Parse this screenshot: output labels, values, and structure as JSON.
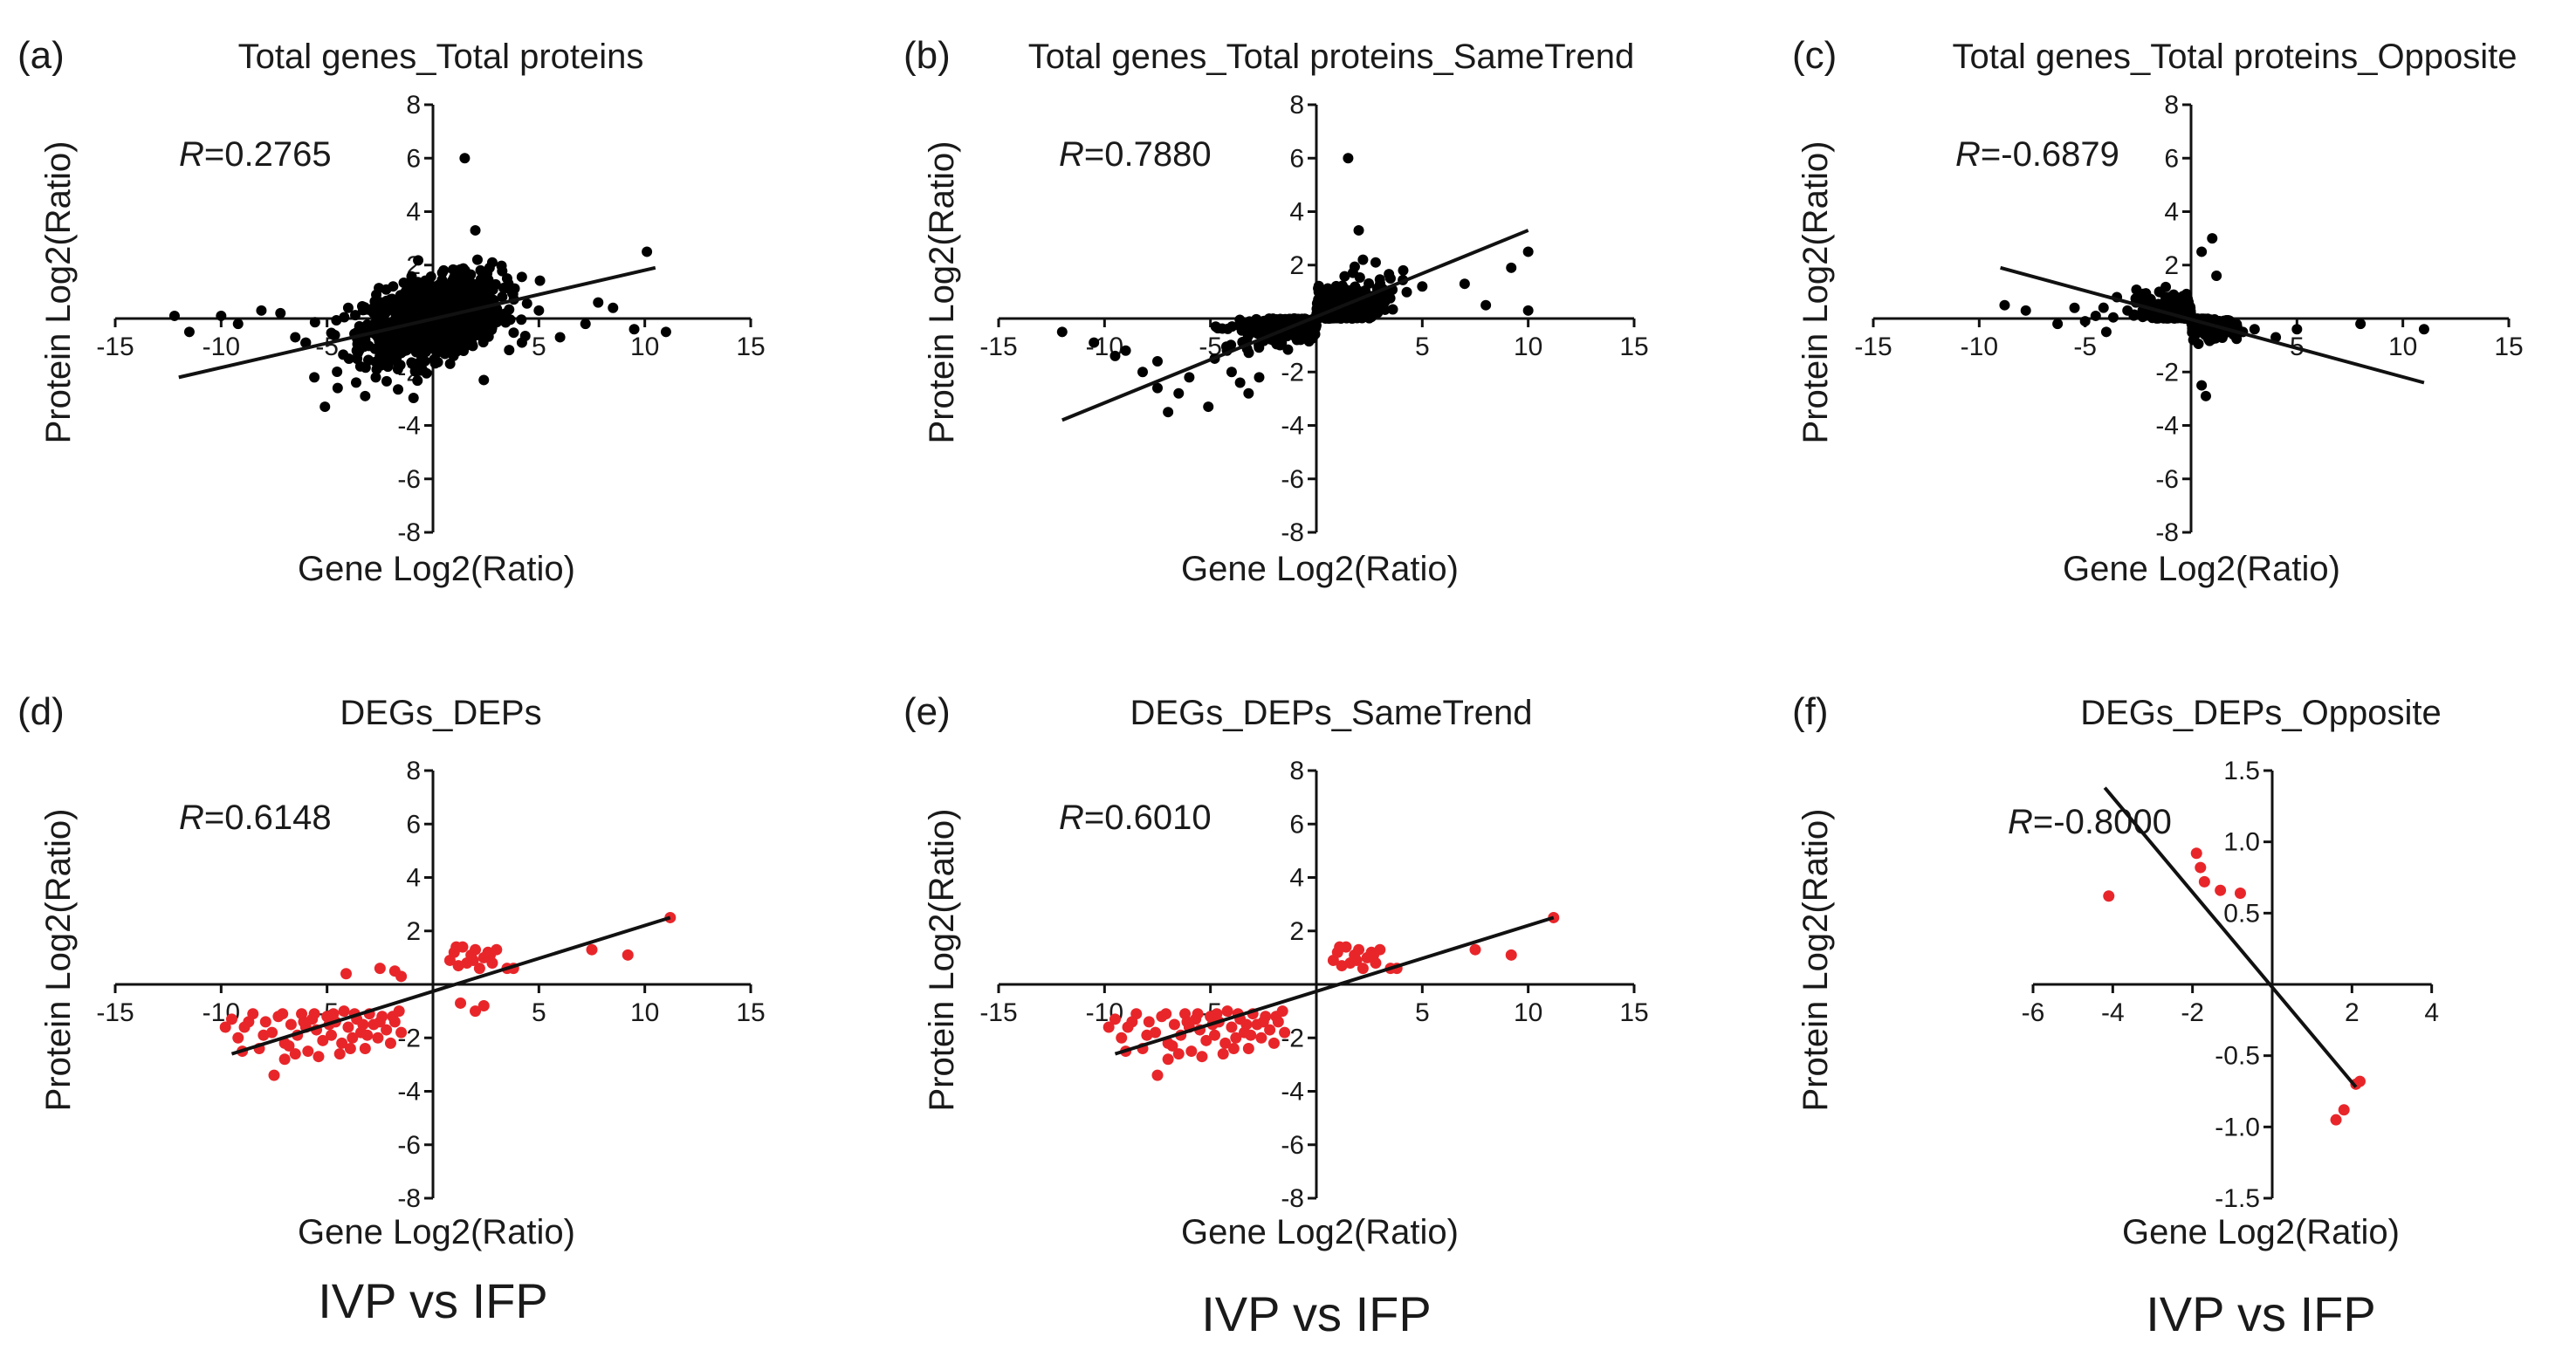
{
  "figure": {
    "group_labels": [
      "IVP vs IFP",
      "IVP vs IFP",
      "IVP vs IFP"
    ]
  },
  "chart_data": [
    {
      "panel": "(a)",
      "type": "scatter",
      "title": "Total genes_Total proteins",
      "xlabel": "Gene Log2(Ratio)",
      "ylabel": "Protein Log2(Ratio)",
      "r_label": "R",
      "r_value": "=0.2765",
      "xlim": [
        -15,
        15
      ],
      "ylim": [
        -8,
        8
      ],
      "xticks": [
        -15,
        -10,
        -5,
        5,
        10,
        15
      ],
      "yticks": [
        -8,
        -6,
        -4,
        -2,
        2,
        4,
        6,
        8
      ],
      "marker_color": "#000000",
      "cluster": {
        "kind": "all",
        "n": 1100,
        "x_mean": 0,
        "x_sd": 1.6,
        "y_sd": 0.7,
        "slope": 0.17
      },
      "points": [
        [
          -12.2,
          0.1
        ],
        [
          -11.5,
          -0.5
        ],
        [
          -10,
          0.1
        ],
        [
          -9.2,
          -0.2
        ],
        [
          -8.1,
          0.3
        ],
        [
          -7.2,
          0.2
        ],
        [
          -6.5,
          -0.7
        ],
        [
          -6,
          -0.9
        ],
        [
          -5.6,
          -2.2
        ],
        [
          -5.1,
          -3.3
        ],
        [
          -4.5,
          -2.6
        ],
        [
          -4,
          0.4
        ],
        [
          -3.6,
          -1.2
        ],
        [
          -3.2,
          -2.9
        ],
        [
          -2.7,
          -2.2
        ],
        [
          1.5,
          6
        ],
        [
          2,
          3.3
        ],
        [
          2.1,
          2.2
        ],
        [
          2.4,
          -2.3
        ],
        [
          2.8,
          2.1
        ],
        [
          3.5,
          1.5
        ],
        [
          4.2,
          -0.9
        ],
        [
          5,
          0.3
        ],
        [
          6,
          -0.7
        ],
        [
          7.2,
          -0.2
        ],
        [
          7.8,
          0.6
        ],
        [
          8.5,
          0.4
        ],
        [
          9.5,
          -0.4
        ],
        [
          10.1,
          2.5
        ],
        [
          11,
          -0.5
        ]
      ],
      "fit": {
        "x": [
          -12,
          10.5
        ],
        "y": [
          -2.2,
          1.9
        ]
      }
    },
    {
      "panel": "(b)",
      "type": "scatter",
      "title": "Total genes_Total proteins_SameTrend",
      "xlabel": "Gene Log2(Ratio)",
      "ylabel": "Protein Log2(Ratio)",
      "r_label": "R",
      "r_value": "=0.7880",
      "xlim": [
        -15,
        15
      ],
      "ylim": [
        -8,
        8
      ],
      "xticks": [
        -15,
        -10,
        -5,
        5,
        10,
        15
      ],
      "yticks": [
        -8,
        -6,
        -4,
        -2,
        2,
        4,
        6,
        8
      ],
      "marker_color": "#000000",
      "cluster": {
        "kind": "same",
        "n": 700,
        "x_mean": 0,
        "x_sd": 1.7,
        "y_sd": 0.5,
        "slope": 0.2
      },
      "points": [
        [
          -12,
          -0.5
        ],
        [
          -10.5,
          -0.9
        ],
        [
          -9.5,
          -1.4
        ],
        [
          -9,
          -1.2
        ],
        [
          -8.2,
          -2
        ],
        [
          -7.5,
          -1.6
        ],
        [
          -7.5,
          -2.6
        ],
        [
          -7,
          -3.5
        ],
        [
          -6.5,
          -2.8
        ],
        [
          -6,
          -2.2
        ],
        [
          -5.1,
          -3.3
        ],
        [
          -4.8,
          -1.5
        ],
        [
          -4,
          -2
        ],
        [
          -3.6,
          -2.4
        ],
        [
          -3.2,
          -2.8
        ],
        [
          -2.7,
          -2.2
        ],
        [
          1.5,
          6
        ],
        [
          2,
          3.3
        ],
        [
          2.2,
          2.2
        ],
        [
          2.8,
          2.1
        ],
        [
          3.5,
          1.5
        ],
        [
          4.1,
          1.8
        ],
        [
          5,
          1.2
        ],
        [
          7,
          1.3
        ],
        [
          8,
          0.5
        ],
        [
          9.2,
          1.9
        ],
        [
          10,
          2.5
        ],
        [
          10,
          0.3
        ]
      ],
      "fit": {
        "x": [
          -12,
          10
        ],
        "y": [
          -3.8,
          3.3
        ]
      }
    },
    {
      "panel": "(c)",
      "type": "scatter",
      "title": "Total genes_Total proteins_Opposite",
      "xlabel": "Gene Log2(Ratio)",
      "ylabel": "Protein Log2(Ratio)",
      "r_label": "R",
      "r_value": "=-0.6879",
      "xlim": [
        -15,
        15
      ],
      "ylim": [
        -8,
        8
      ],
      "xticks": [
        -15,
        -10,
        -5,
        5,
        10,
        15
      ],
      "yticks": [
        -8,
        -6,
        -4,
        -2,
        2,
        4,
        6,
        8
      ],
      "marker_color": "#000000",
      "cluster": {
        "kind": "opposite",
        "n": 450,
        "x_mean": 0,
        "x_sd": 1.2,
        "y_sd": 0.4,
        "slope": -0.18
      },
      "points": [
        [
          -8.8,
          0.5
        ],
        [
          -7.8,
          0.3
        ],
        [
          -6.3,
          -0.2
        ],
        [
          -5.5,
          0.4
        ],
        [
          -5,
          -0.1
        ],
        [
          -4.5,
          0.1
        ],
        [
          -4,
          -0.5
        ],
        [
          -3.5,
          0.8
        ],
        [
          -3,
          0.3
        ],
        [
          -2.6,
          0.6
        ],
        [
          -1.5,
          1
        ],
        [
          0.5,
          2.5
        ],
        [
          0.5,
          -2.5
        ],
        [
          0.7,
          -2.9
        ],
        [
          1,
          3
        ],
        [
          1.2,
          1.6
        ],
        [
          2,
          -0.6
        ],
        [
          3,
          -0.4
        ],
        [
          4,
          -0.7
        ],
        [
          5,
          -0.4
        ],
        [
          8,
          -0.2
        ],
        [
          11,
          -0.4
        ]
      ],
      "fit": {
        "x": [
          -9,
          11
        ],
        "y": [
          1.9,
          -2.4
        ]
      }
    },
    {
      "panel": "(d)",
      "type": "scatter",
      "title": "DEGs_DEPs",
      "xlabel": "Gene Log2(Ratio)",
      "ylabel": "Protein Log2(Ratio)",
      "r_label": "R",
      "r_value": "=0.6148",
      "xlim": [
        -15,
        15
      ],
      "ylim": [
        -8,
        8
      ],
      "xticks": [
        -15,
        -10,
        -5,
        5,
        10,
        15
      ],
      "yticks": [
        -8,
        -6,
        -4,
        -2,
        2,
        4,
        6,
        8
      ],
      "marker_color": "#e8262a",
      "points": [
        [
          -9.5,
          -1.3
        ],
        [
          -9.2,
          -2
        ],
        [
          -8.9,
          -1.6
        ],
        [
          -8.5,
          -1.1
        ],
        [
          -8.2,
          -2.4
        ],
        [
          -7.9,
          -1.4
        ],
        [
          -7.6,
          -1.8
        ],
        [
          -7.3,
          -1.2
        ],
        [
          -7,
          -2.2
        ],
        [
          -7,
          -2.8
        ],
        [
          -6.7,
          -1.5
        ],
        [
          -6.4,
          -1.9
        ],
        [
          -6.2,
          -1.1
        ],
        [
          -5.9,
          -2.5
        ],
        [
          -5.7,
          -1.3
        ],
        [
          -5.5,
          -1.7
        ],
        [
          -5.2,
          -2.1
        ],
        [
          -5,
          -1.2
        ],
        [
          -4.8,
          -1.9
        ],
        [
          -4.6,
          -1.4
        ],
        [
          -4.4,
          -2.6
        ],
        [
          -4.2,
          -1
        ],
        [
          -4,
          -1.6
        ],
        [
          -3.8,
          -2
        ],
        [
          -3.6,
          -1.3
        ],
        [
          -3.4,
          -1.8
        ],
        [
          -3.2,
          -2.4
        ],
        [
          -3,
          -1.1
        ],
        [
          -2.8,
          -1.5
        ],
        [
          -2.6,
          -2
        ],
        [
          -2.4,
          -1.2
        ],
        [
          -2.2,
          -1.7
        ],
        [
          -2,
          -2.2
        ],
        [
          -1.8,
          -1.4
        ],
        [
          -1.6,
          -1
        ],
        [
          -1.5,
          -1.8
        ],
        [
          -9.8,
          -1.6
        ],
        [
          -9,
          -2.5
        ],
        [
          -8,
          -1.9
        ],
        [
          -7.5,
          -3.4
        ],
        [
          -6.8,
          -2.3
        ],
        [
          -6,
          -1.6
        ],
        [
          -5.4,
          -2.7
        ],
        [
          -4.9,
          -1.5
        ],
        [
          -4.3,
          -2.2
        ],
        [
          -3.7,
          -1.1
        ],
        [
          -3.1,
          -1.9
        ],
        [
          -2.5,
          -1.4
        ],
        [
          -1.9,
          -1.2
        ],
        [
          -7.1,
          -1.1
        ],
        [
          -6.5,
          -2.6
        ],
        [
          -4.7,
          -1.1
        ],
        [
          -3.9,
          -2.4
        ],
        [
          -6.1,
          -1.4
        ],
        [
          -5.6,
          -1.1
        ],
        [
          -8.7,
          -1.4
        ],
        [
          -3.3,
          -1.5
        ],
        [
          -4.1,
          0.4
        ],
        [
          -2.5,
          0.6
        ],
        [
          -1.8,
          0.5
        ],
        [
          -1.5,
          0.3
        ],
        [
          0.8,
          0.9
        ],
        [
          1,
          1.2
        ],
        [
          1.2,
          0.7
        ],
        [
          1.4,
          1.4
        ],
        [
          1.6,
          0.8
        ],
        [
          1.8,
          1.1
        ],
        [
          2,
          1.3
        ],
        [
          2.2,
          0.6
        ],
        [
          2.4,
          1
        ],
        [
          2.6,
          1.2
        ],
        [
          2.8,
          0.8
        ],
        [
          3,
          1.3
        ],
        [
          3.5,
          0.6
        ],
        [
          1.1,
          1.4
        ],
        [
          1.9,
          0.9
        ],
        [
          2.7,
          1.1
        ],
        [
          1.3,
          -0.7
        ],
        [
          2,
          -1
        ],
        [
          2.4,
          -0.8
        ],
        [
          3.8,
          0.6
        ],
        [
          7.5,
          1.3
        ],
        [
          9.2,
          1.1
        ],
        [
          11.2,
          2.5
        ]
      ],
      "fit": {
        "x": [
          -9.5,
          11.2
        ],
        "y": [
          -2.6,
          2.5
        ]
      }
    },
    {
      "panel": "(e)",
      "type": "scatter",
      "title": "DEGs_DEPs_SameTrend",
      "xlabel": "Gene Log2(Ratio)",
      "ylabel": "Protein Log2(Ratio)",
      "r_label": "R",
      "r_value": "=0.6010",
      "xlim": [
        -15,
        15
      ],
      "ylim": [
        -8,
        8
      ],
      "xticks": [
        -15,
        -10,
        -5,
        5,
        10,
        15
      ],
      "yticks": [
        -8,
        -6,
        -4,
        -2,
        2,
        4,
        6,
        8
      ],
      "marker_color": "#e8262a",
      "points": [
        [
          -9.5,
          -1.3
        ],
        [
          -9.2,
          -2
        ],
        [
          -8.9,
          -1.6
        ],
        [
          -8.5,
          -1.1
        ],
        [
          -8.2,
          -2.4
        ],
        [
          -7.9,
          -1.4
        ],
        [
          -7.6,
          -1.8
        ],
        [
          -7.3,
          -1.2
        ],
        [
          -7,
          -2.2
        ],
        [
          -7,
          -2.8
        ],
        [
          -6.7,
          -1.5
        ],
        [
          -6.4,
          -1.9
        ],
        [
          -6.2,
          -1.1
        ],
        [
          -5.9,
          -2.5
        ],
        [
          -5.7,
          -1.3
        ],
        [
          -5.5,
          -1.7
        ],
        [
          -5.2,
          -2.1
        ],
        [
          -5,
          -1.2
        ],
        [
          -4.8,
          -1.9
        ],
        [
          -4.6,
          -1.4
        ],
        [
          -4.4,
          -2.6
        ],
        [
          -4.2,
          -1
        ],
        [
          -4,
          -1.6
        ],
        [
          -3.8,
          -2
        ],
        [
          -3.6,
          -1.3
        ],
        [
          -3.4,
          -1.8
        ],
        [
          -3.2,
          -2.4
        ],
        [
          -3,
          -1.1
        ],
        [
          -2.8,
          -1.5
        ],
        [
          -2.6,
          -2
        ],
        [
          -2.4,
          -1.2
        ],
        [
          -2.2,
          -1.7
        ],
        [
          -2,
          -2.2
        ],
        [
          -1.8,
          -1.4
        ],
        [
          -1.6,
          -1
        ],
        [
          -1.5,
          -1.8
        ],
        [
          -9.8,
          -1.6
        ],
        [
          -9,
          -2.5
        ],
        [
          -8,
          -1.9
        ],
        [
          -7.5,
          -3.4
        ],
        [
          -6.8,
          -2.3
        ],
        [
          -6,
          -1.6
        ],
        [
          -5.4,
          -2.7
        ],
        [
          -4.9,
          -1.5
        ],
        [
          -4.3,
          -2.2
        ],
        [
          -3.7,
          -1.1
        ],
        [
          -3.1,
          -1.9
        ],
        [
          -2.5,
          -1.4
        ],
        [
          -1.9,
          -1.2
        ],
        [
          -7.1,
          -1.1
        ],
        [
          -6.5,
          -2.6
        ],
        [
          -4.7,
          -1.1
        ],
        [
          -3.9,
          -2.4
        ],
        [
          -6.1,
          -1.4
        ],
        [
          -5.6,
          -1.1
        ],
        [
          -8.7,
          -1.4
        ],
        [
          -3.3,
          -1.5
        ],
        [
          0.8,
          0.9
        ],
        [
          1,
          1.2
        ],
        [
          1.2,
          0.7
        ],
        [
          1.4,
          1.4
        ],
        [
          1.6,
          0.8
        ],
        [
          1.8,
          1.1
        ],
        [
          2,
          1.3
        ],
        [
          2.2,
          0.6
        ],
        [
          2.4,
          1
        ],
        [
          2.6,
          1.2
        ],
        [
          2.8,
          0.8
        ],
        [
          3,
          1.3
        ],
        [
          3.5,
          0.6
        ],
        [
          1.1,
          1.4
        ],
        [
          1.9,
          0.9
        ],
        [
          2.7,
          1.1
        ],
        [
          3.8,
          0.6
        ],
        [
          7.5,
          1.3
        ],
        [
          9.2,
          1.1
        ],
        [
          11.2,
          2.5
        ]
      ],
      "fit": {
        "x": [
          -9.5,
          11.2
        ],
        "y": [
          -2.6,
          2.5
        ]
      }
    },
    {
      "panel": "(f)",
      "type": "scatter",
      "title": "DEGs_DEPs_Opposite",
      "xlabel": "Gene Log2(Ratio)",
      "ylabel": "Protein Log2(Ratio)",
      "r_label": "R",
      "r_value": "=-0.8000",
      "xlim": [
        -6,
        4
      ],
      "ylim": [
        -1.5,
        1.5
      ],
      "xticks": [
        -6,
        -4,
        -2,
        2,
        4
      ],
      "yticks": [
        -1.5,
        -1.0,
        -0.5,
        0.5,
        1.0,
        1.5
      ],
      "ytick_labels": [
        "-1.5",
        "-1.0",
        "-0.5",
        "0.5",
        "1.0",
        "1.5"
      ],
      "marker_color": "#e8262a",
      "points": [
        [
          -4.1,
          0.62
        ],
        [
          -1.9,
          0.92
        ],
        [
          -1.8,
          0.82
        ],
        [
          -1.7,
          0.72
        ],
        [
          -1.3,
          0.66
        ],
        [
          -0.8,
          0.64
        ],
        [
          1.6,
          -0.95
        ],
        [
          1.8,
          -0.88
        ],
        [
          2.1,
          -0.7
        ],
        [
          2.2,
          -0.68
        ]
      ],
      "fit": {
        "x": [
          -4.2,
          2.1
        ],
        "y": [
          1.38,
          -0.72
        ]
      }
    }
  ]
}
